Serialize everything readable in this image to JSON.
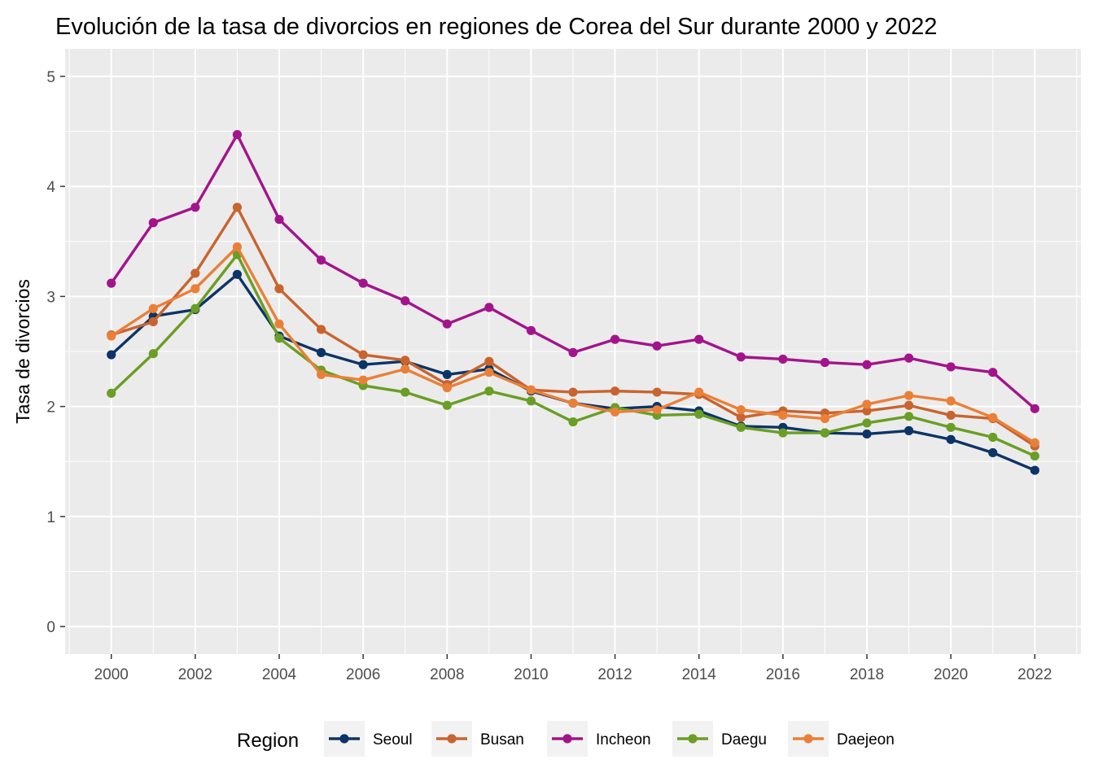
{
  "chart_data": {
    "type": "line",
    "title": "Evolución de la tasa de divorcios en regiones de Corea del Sur durante 2000 y 2022",
    "xlabel": "",
    "ylabel": "Tasa de divorcios",
    "xlim": [
      1998.9,
      2023.1
    ],
    "ylim": [
      -0.25,
      5.25
    ],
    "x_ticks": [
      2000,
      2002,
      2004,
      2006,
      2008,
      2010,
      2012,
      2014,
      2016,
      2018,
      2020,
      2022
    ],
    "y_ticks": [
      0,
      1,
      2,
      3,
      4,
      5
    ],
    "grid": true,
    "legend": {
      "title": "Region",
      "position": "bottom"
    },
    "x": [
      2000,
      2001,
      2002,
      2003,
      2004,
      2005,
      2006,
      2007,
      2008,
      2009,
      2010,
      2011,
      2012,
      2013,
      2014,
      2015,
      2016,
      2017,
      2018,
      2019,
      2020,
      2021,
      2022
    ],
    "series": [
      {
        "name": "Seoul",
        "color": "#0d3466",
        "values": [
          2.47,
          2.82,
          2.88,
          3.2,
          2.64,
          2.49,
          2.38,
          2.41,
          2.29,
          2.34,
          2.14,
          2.03,
          1.98,
          2.0,
          1.96,
          1.82,
          1.81,
          1.76,
          1.75,
          1.78,
          1.7,
          1.58,
          1.42
        ]
      },
      {
        "name": "Busan",
        "color": "#c8642f",
        "values": [
          2.65,
          2.77,
          3.21,
          3.81,
          3.07,
          2.7,
          2.47,
          2.42,
          2.2,
          2.41,
          2.15,
          2.13,
          2.14,
          2.13,
          2.11,
          1.9,
          1.96,
          1.94,
          1.96,
          2.01,
          1.92,
          1.89,
          1.64
        ]
      },
      {
        "name": "Incheon",
        "color": "#a3148c",
        "values": [
          3.12,
          3.67,
          3.81,
          4.47,
          3.7,
          3.33,
          3.12,
          2.96,
          2.75,
          2.9,
          2.69,
          2.49,
          2.61,
          2.55,
          2.61,
          2.45,
          2.43,
          2.4,
          2.38,
          2.44,
          2.36,
          2.31,
          1.98
        ]
      },
      {
        "name": "Daegu",
        "color": "#6a9e24",
        "values": [
          2.12,
          2.48,
          2.89,
          3.38,
          2.62,
          2.33,
          2.19,
          2.13,
          2.01,
          2.14,
          2.05,
          1.86,
          1.99,
          1.92,
          1.93,
          1.81,
          1.76,
          1.76,
          1.85,
          1.91,
          1.81,
          1.72,
          1.55
        ]
      },
      {
        "name": "Daejeon",
        "color": "#ea8038",
        "values": [
          2.64,
          2.89,
          3.07,
          3.45,
          2.75,
          2.29,
          2.24,
          2.34,
          2.17,
          2.31,
          2.15,
          2.03,
          1.95,
          1.97,
          2.13,
          1.97,
          1.92,
          1.89,
          2.02,
          2.1,
          2.05,
          1.9,
          1.67
        ]
      }
    ]
  }
}
